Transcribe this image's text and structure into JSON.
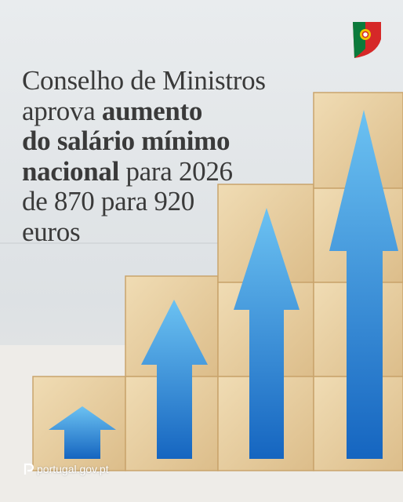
{
  "headline": {
    "lines": [
      [
        {
          "text": "Conselho de Ministros",
          "bold": false
        }
      ],
      [
        {
          "text": "aprova ",
          "bold": false
        },
        {
          "text": "aumento",
          "bold": true
        }
      ],
      [
        {
          "text": "do salário mínimo",
          "bold": true
        }
      ],
      [
        {
          "text": "nacional",
          "bold": true
        },
        {
          "text": " para 2026",
          "bold": false
        }
      ],
      [
        {
          "text": "de 870 para 920",
          "bold": false
        }
      ],
      [
        {
          "text": "euros",
          "bold": false
        }
      ]
    ]
  },
  "footer": {
    "site": "portugal.gov.pt"
  }
}
